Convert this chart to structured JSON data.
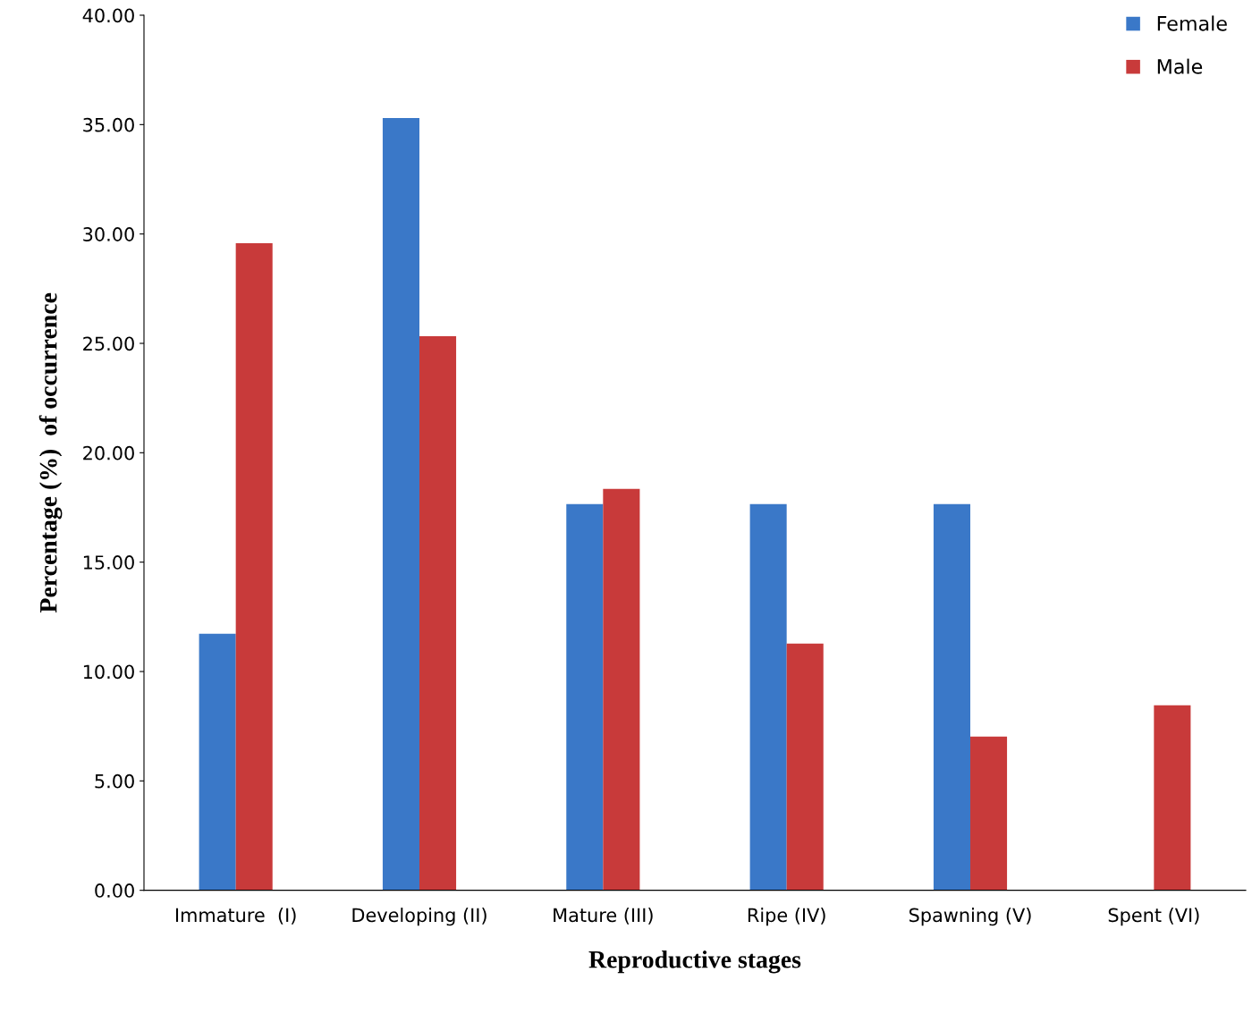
{
  "chart_data": {
    "type": "bar",
    "xlabel": "Reproductive stages",
    "ylabel": "Percentage (%)  of occurrence",
    "categories": [
      "Immature  (I)",
      "Developing (II)",
      "Mature (III)",
      "Ripe (IV)",
      "Spawning (V)",
      "Spent (VI)"
    ],
    "series": [
      {
        "name": "Female",
        "color": "#3a78c8",
        "values": [
          11.73,
          35.3,
          17.65,
          17.65,
          17.65,
          0
        ]
      },
      {
        "name": "Male",
        "color": "#c83a3a",
        "values": [
          29.58,
          25.33,
          18.35,
          11.28,
          7.03,
          8.46
        ]
      }
    ],
    "ylim": [
      0,
      40
    ],
    "yticks": [
      {
        "value": 0,
        "label": "0.00"
      },
      {
        "value": 5,
        "label": "5.00"
      },
      {
        "value": 10,
        "label": "10.00"
      },
      {
        "value": 15,
        "label": "15.00"
      },
      {
        "value": 20,
        "label": "20.00"
      },
      {
        "value": 25,
        "label": "25.00"
      },
      {
        "value": 30,
        "label": "30.00"
      },
      {
        "value": 35,
        "label": "35.00"
      },
      {
        "value": 40,
        "label": "40.00"
      }
    ],
    "legend": "top right",
    "grid": false
  }
}
